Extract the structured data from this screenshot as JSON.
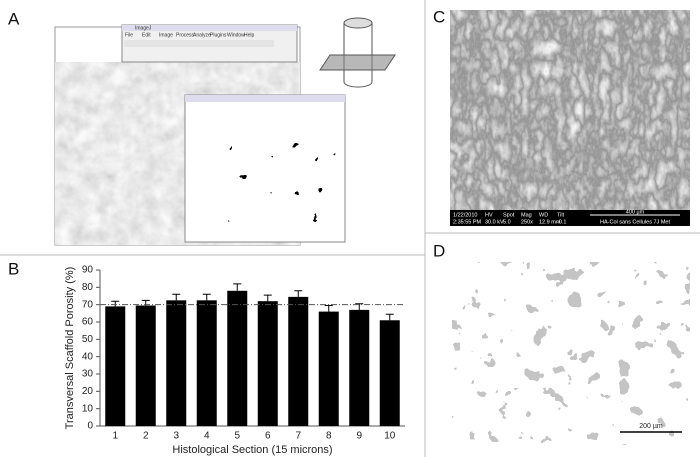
{
  "panel_labels": [
    "A",
    "B",
    "C",
    "D"
  ],
  "panel_a": {
    "window_title": "ImageJ",
    "menu": [
      "File",
      "Edit",
      "Image",
      "Process",
      "Analyze",
      "Plugins",
      "Window",
      "Help"
    ]
  },
  "panel_c": {
    "date": "1/22/2010",
    "time": "2:35:55 PM",
    "fields": [
      "HV",
      "Spot",
      "Mag",
      "WD",
      "Tilt"
    ],
    "field_values": [
      "30.0 kV",
      "5.0",
      "250x",
      "12.9 mm",
      "-0.1"
    ],
    "scale": "400 µm",
    "sample": "HA-Col sans Cellules 7J Met"
  },
  "panel_d": {
    "scale": "200 µm"
  },
  "chart_data": {
    "type": "bar",
    "ylabel": "Transversal Scaffold Porosity (%)",
    "xlabel": "Histological Section (15 microns)",
    "categories": [
      "1",
      "2",
      "3",
      "4",
      "5",
      "6",
      "7",
      "8",
      "9",
      "10"
    ],
    "values": [
      69,
      69.5,
      72.5,
      72.5,
      78,
      72,
      74.5,
      66,
      67,
      61
    ],
    "errors": [
      3,
      3,
      3.5,
      3.5,
      4,
      3.5,
      3.5,
      3.5,
      3.5,
      3.5
    ],
    "reference_line": 70,
    "color": "#000000",
    "ylim": [
      0,
      90
    ],
    "yticks": [
      0,
      10,
      20,
      30,
      40,
      50,
      60,
      70,
      80,
      90
    ]
  }
}
